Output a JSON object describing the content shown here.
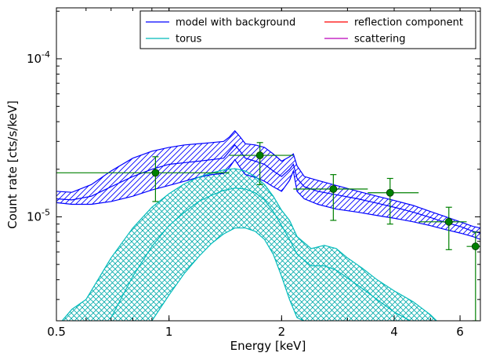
{
  "chart_data": {
    "type": "line",
    "xlabel": "Energy [keV]",
    "ylabel": "Count rate [cts/s/keV]",
    "xscale": "log",
    "yscale": "log",
    "xlim": [
      0.5,
      6.8
    ],
    "ylim": [
      2.2e-06,
      0.00021
    ],
    "grid": false,
    "legend_placement": "top-right",
    "legend_columns": 2,
    "x_ticks": [
      {
        "value": 0.5,
        "label": "0.5"
      },
      {
        "value": 1,
        "label": "1"
      },
      {
        "value": 2,
        "label": "2"
      },
      {
        "value": 4,
        "label": "4"
      },
      {
        "value": 6,
        "label": "6"
      }
    ],
    "y_ticks": [
      {
        "value": 1e-05,
        "base": "10",
        "exp": "-5"
      },
      {
        "value": 0.0001,
        "base": "10",
        "exp": "-4"
      }
    ],
    "series": [
      {
        "name": "model with background",
        "color": "#0000ff",
        "band": true,
        "x": [
          0.5,
          0.55,
          0.62,
          0.7,
          0.8,
          0.9,
          1.0,
          1.1,
          1.2,
          1.3,
          1.4,
          1.45,
          1.5,
          1.55,
          1.6,
          1.7,
          1.8,
          1.9,
          2.0,
          2.1,
          2.15,
          2.2,
          2.3,
          2.5,
          2.8,
          3.2,
          3.6,
          4.0,
          4.5,
          5.0,
          5.5,
          6.0,
          6.5,
          6.8
        ],
        "upper": [
          1.45e-05,
          1.43e-05,
          1.6e-05,
          1.95e-05,
          2.35e-05,
          2.6e-05,
          2.75e-05,
          2.85e-05,
          2.9e-05,
          2.95e-05,
          3e-05,
          3.2e-05,
          3.5e-05,
          3.2e-05,
          2.9e-05,
          2.85e-05,
          2.75e-05,
          2.5e-05,
          2.25e-05,
          2.4e-05,
          2.5e-05,
          2.1e-05,
          1.8e-05,
          1.7e-05,
          1.58e-05,
          1.45e-05,
          1.35e-05,
          1.27e-05,
          1.18e-05,
          1.08e-05,
          1e-05,
          9.3e-06,
          8.7e-06,
          8.5e-06
        ],
        "mid": [
          1.3e-05,
          1.28e-05,
          1.35e-05,
          1.55e-05,
          1.8e-05,
          2e-05,
          2.15e-05,
          2.2e-05,
          2.25e-05,
          2.3e-05,
          2.35e-05,
          2.6e-05,
          2.85e-05,
          2.6e-05,
          2.35e-05,
          2.25e-05,
          2.15e-05,
          1.95e-05,
          1.8e-05,
          2e-05,
          2.15e-05,
          1.75e-05,
          1.55e-05,
          1.45e-05,
          1.38e-05,
          1.3e-05,
          1.22e-05,
          1.15e-05,
          1.07e-05,
          9.9e-06,
          9.2e-06,
          8.7e-06,
          8.1e-06,
          7.9e-06
        ],
        "lower": [
          1.23e-05,
          1.2e-05,
          1.2e-05,
          1.25e-05,
          1.35e-05,
          1.48e-05,
          1.58e-05,
          1.68e-05,
          1.78e-05,
          1.85e-05,
          1.88e-05,
          2.05e-05,
          2.3e-05,
          2.05e-05,
          1.85e-05,
          1.78e-05,
          1.68e-05,
          1.55e-05,
          1.45e-05,
          1.7e-05,
          1.95e-05,
          1.45e-05,
          1.3e-05,
          1.2e-05,
          1.12e-05,
          1.07e-05,
          1.02e-05,
          9.8e-06,
          9.3e-06,
          8.8e-06,
          8.3e-06,
          7.9e-06,
          7.5e-06,
          7.2e-06
        ]
      },
      {
        "name": "torus",
        "color": "#00bbbb",
        "band": true,
        "x": [
          0.5,
          0.55,
          0.6,
          0.7,
          0.8,
          0.9,
          1.0,
          1.1,
          1.2,
          1.3,
          1.4,
          1.5,
          1.6,
          1.7,
          1.8,
          1.9,
          2.0,
          2.1,
          2.2,
          2.4,
          2.6,
          2.8,
          3.0,
          3.3,
          3.6,
          4.0,
          4.5,
          5.0,
          5.3
        ],
        "upper": [
          2e-06,
          2.6e-06,
          3e-06,
          5.5e-06,
          8.5e-06,
          1.15e-05,
          1.4e-05,
          1.62e-05,
          1.78e-05,
          1.9e-05,
          1.98e-05,
          2.02e-05,
          1.95e-05,
          1.8e-05,
          1.6e-05,
          1.35e-05,
          1.1e-05,
          9.5e-06,
          7.5e-06,
          6.3e-06,
          6.6e-06,
          6.3e-06,
          5.5e-06,
          4.7e-06,
          4e-06,
          3.4e-06,
          2.9e-06,
          2.4e-06,
          2.1e-06
        ],
        "mid": [
          null,
          null,
          null,
          2.3e-06,
          4.2e-06,
          6.5e-06,
          8.8e-06,
          1.07e-05,
          1.25e-05,
          1.37e-05,
          1.47e-05,
          1.52e-05,
          1.5e-05,
          1.42e-05,
          1.28e-05,
          1.08e-05,
          8.8e-06,
          7.2e-06,
          5.8e-06,
          4.9e-06,
          4.9e-06,
          4.6e-06,
          4.1e-06,
          3.5e-06,
          3e-06,
          2.5e-06,
          2.15e-06,
          null,
          null
        ],
        "lower": [
          null,
          null,
          null,
          null,
          null,
          2.2e-06,
          3.2e-06,
          4.4e-06,
          5.6e-06,
          6.8e-06,
          7.8e-06,
          8.5e-06,
          8.5e-06,
          8.1e-06,
          7.2e-06,
          5.8e-06,
          4.2e-06,
          3e-06,
          2.3e-06,
          2.1e-06,
          2.05e-06,
          null,
          null,
          null,
          null,
          null,
          null,
          null,
          null
        ]
      },
      {
        "name": "reflection component",
        "color": "#ff0000",
        "band": false
      },
      {
        "name": "scattering",
        "color": "#bb00bb",
        "band": false
      }
    ],
    "data_points": {
      "color": "#008000",
      "points": [
        {
          "x": 0.92,
          "y": 1.9e-05,
          "xerr": [
            0.5,
            1.45
          ],
          "yerr": [
            1.25e-05,
            2.4e-05
          ]
        },
        {
          "x": 1.75,
          "y": 2.45e-05,
          "xerr": [
            1.45,
            2.15
          ],
          "yerr": [
            1.6e-05,
            2.95e-05
          ]
        },
        {
          "x": 2.75,
          "y": 1.5e-05,
          "xerr": [
            2.15,
            3.4
          ],
          "yerr": [
            9.5e-06,
            1.85e-05
          ]
        },
        {
          "x": 3.9,
          "y": 1.42e-05,
          "xerr": [
            3.4,
            4.65
          ],
          "yerr": [
            9e-06,
            1.75e-05
          ]
        },
        {
          "x": 5.6,
          "y": 9.3e-06,
          "xerr": [
            4.65,
            6.25
          ],
          "yerr": [
            6.2e-06,
            1.15e-05
          ]
        },
        {
          "x": 6.6,
          "y": 6.5e-06,
          "xerr": [
            6.25,
            6.8
          ],
          "yerr": [
            2.2e-06,
            8e-06
          ]
        }
      ]
    }
  }
}
